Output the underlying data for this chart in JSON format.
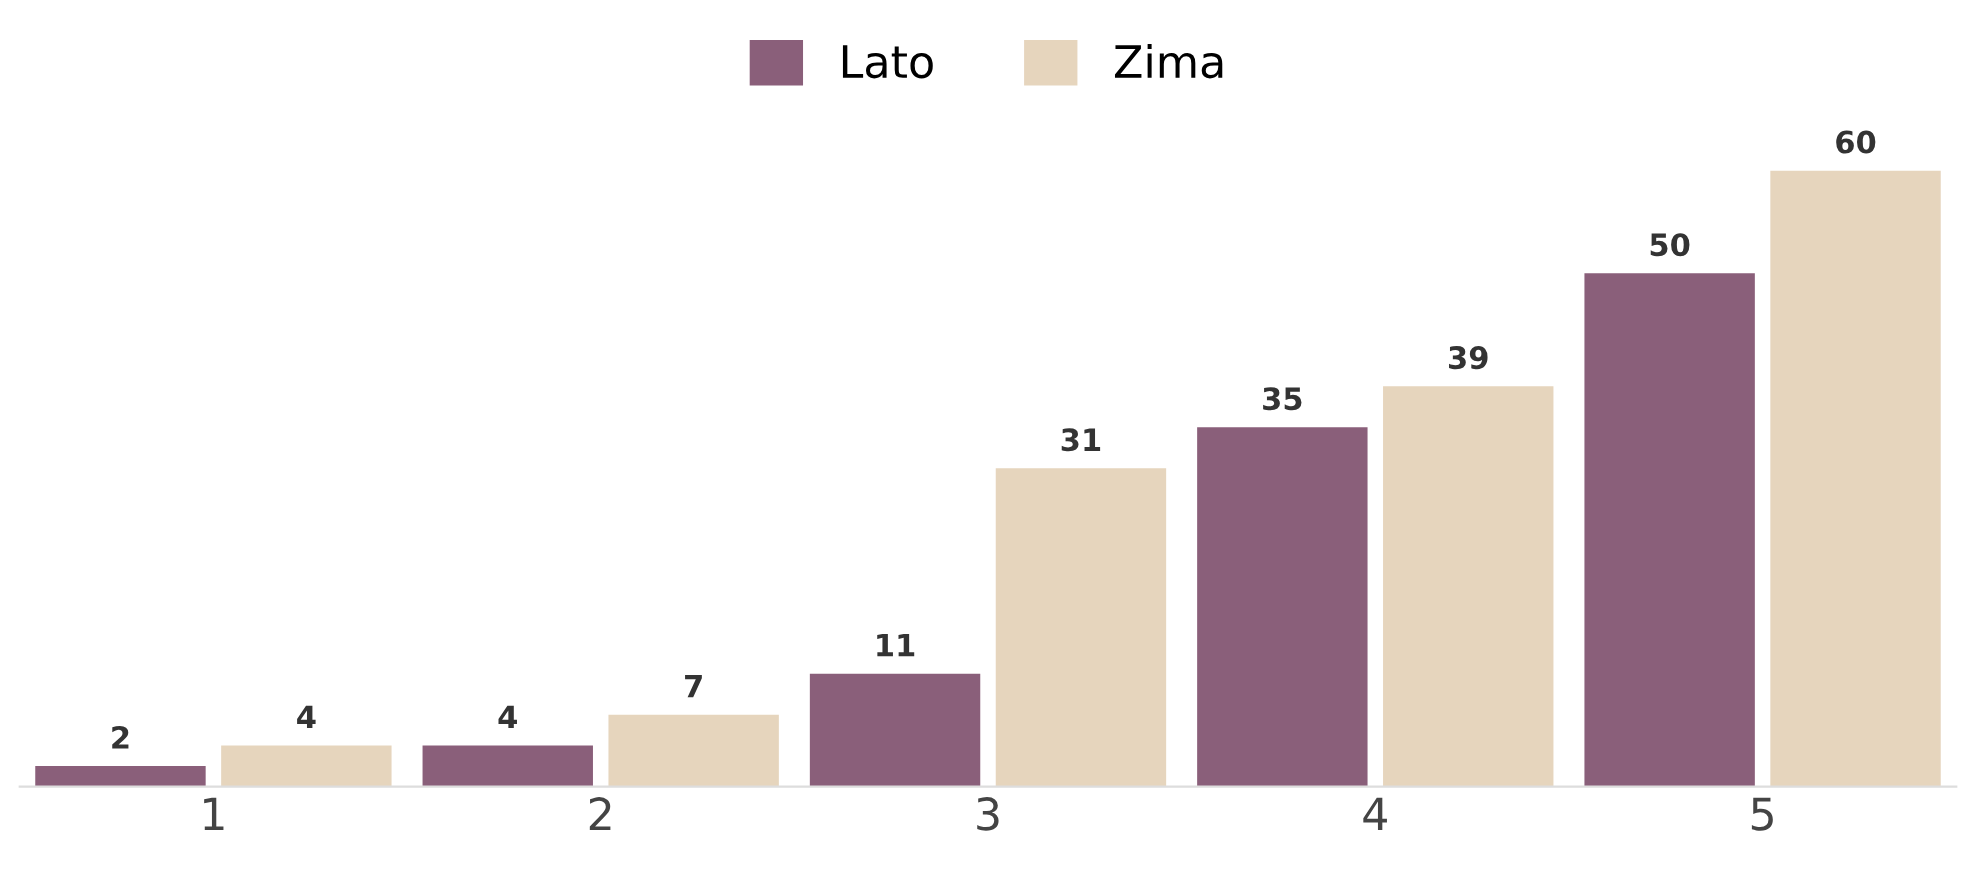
{
  "chart_data": {
    "type": "bar",
    "categories": [
      "1",
      "2",
      "3",
      "4",
      "5"
    ],
    "series": [
      {
        "name": "Lato",
        "color": "#8a5f7a",
        "values": [
          2,
          4,
          11,
          35,
          50
        ]
      },
      {
        "name": "Zima",
        "color": "#e6d5bd",
        "values": [
          4,
          7,
          31,
          39,
          60
        ]
      }
    ],
    "data_labels": true,
    "legend": "top",
    "grid": false,
    "tick_labels": "x"
  }
}
